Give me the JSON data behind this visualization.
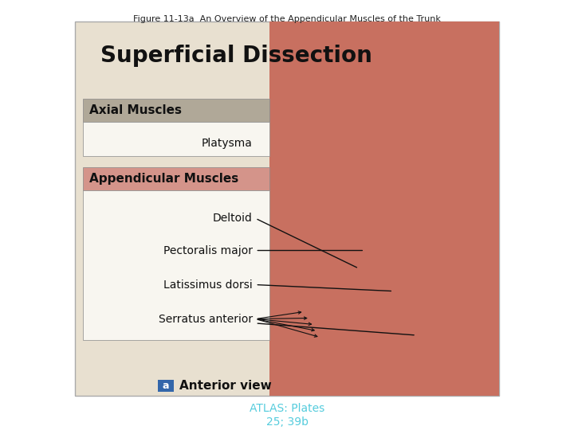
{
  "title": "Figure 11-13a  An Overview of the Appendicular Muscles of the Trunk",
  "title_fontsize": 8,
  "title_color": "#222222",
  "bg_color": "#ffffff",
  "main_bg": "#e8e0d0",
  "section_title": "Superficial Dissection",
  "section_title_fontsize": 20,
  "axial_box_header": "Axial Muscles",
  "axial_box_header_bg": "#b0a898",
  "appendicular_box_header": "Appendicular Muscles",
  "appendicular_box_header_bg": "#d4948a",
  "label_fontsize": 10,
  "header_fontsize": 11,
  "anterior_view_label": "Anterior view",
  "atlas_label": "ATLAS: Plates",
  "atlas_label2": "25; 39b",
  "atlas_color": "#55ccdd",
  "anterior_box_color": "#3366aa",
  "line_color": "#111111",
  "serratus_lines": [
    [
      0.445,
      0.255,
      0.53,
      0.272
    ],
    [
      0.445,
      0.255,
      0.54,
      0.257
    ],
    [
      0.445,
      0.255,
      0.548,
      0.242
    ],
    [
      0.445,
      0.255,
      0.553,
      0.227
    ],
    [
      0.445,
      0.255,
      0.558,
      0.212
    ]
  ]
}
